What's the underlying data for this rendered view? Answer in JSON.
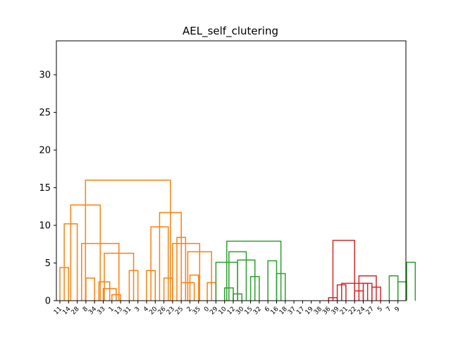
{
  "chart_data": {
    "type": "dendrogram",
    "title": "AEL_self_clutering",
    "xlabel": "",
    "ylabel": "",
    "ylim": [
      0,
      34.5
    ],
    "yticks": [
      0,
      5,
      10,
      15,
      20,
      25,
      30
    ],
    "grid": false,
    "leaves": [
      "11",
      "14",
      "28",
      "8",
      "34",
      "33",
      "1",
      "13",
      "31",
      "3",
      "4",
      "20",
      "26",
      "23",
      "25",
      "2",
      "35",
      "0",
      "29",
      "10",
      "12",
      "30",
      "15",
      "32",
      "6",
      "16",
      "18",
      "37",
      "17",
      "19",
      "38",
      "36",
      "39",
      "21",
      "22",
      "24",
      "27",
      "5",
      "7",
      "9"
    ],
    "colors": {
      "orange": "#ff7f0e",
      "green": "#2ca02c",
      "red": "#d62728",
      "blue": "#1f77b4"
    },
    "merges": [
      {
        "left": 0,
        "right": 1,
        "height": 4.4,
        "color": "orange"
      },
      {
        "left": 0.5,
        "right": 2,
        "height": 10.2,
        "color": "orange"
      },
      {
        "left": 3,
        "right": 4,
        "height": 3.0,
        "color": "orange"
      },
      {
        "left": 6,
        "right": 7,
        "height": 0.8,
        "color": "orange"
      },
      {
        "left": 5,
        "right": 6.5,
        "height": 1.6,
        "color": "orange"
      },
      {
        "left": 4.5,
        "right": 5.75,
        "height": 2.5,
        "color": "orange"
      },
      {
        "left": 8,
        "right": 9,
        "height": 4.0,
        "color": "orange"
      },
      {
        "left": 5.125,
        "right": 8.5,
        "height": 6.3,
        "color": "orange"
      },
      {
        "left": 2.5,
        "right": 6.8125,
        "height": 7.6,
        "color": "orange"
      },
      {
        "left": 1.25,
        "right": 4.65625,
        "height": 12.7,
        "color": "orange"
      },
      {
        "left": 10,
        "right": 11,
        "height": 4.0,
        "color": "orange"
      },
      {
        "left": 12,
        "right": 13,
        "height": 3.0,
        "color": "orange"
      },
      {
        "left": 10.5,
        "right": 12.5,
        "height": 9.8,
        "color": "orange"
      },
      {
        "left": 15,
        "right": 16,
        "height": 3.4,
        "color": "orange"
      },
      {
        "left": 14,
        "right": 15.5,
        "height": 2.4,
        "color": "orange"
      },
      {
        "left": 17,
        "right": 18,
        "height": 2.4,
        "color": "orange"
      },
      {
        "left": 14.75,
        "right": 17.5,
        "height": 6.5,
        "color": "orange"
      },
      {
        "left": 13,
        "right": 16.125,
        "height": 7.6,
        "color": "orange"
      },
      {
        "left": 13.5,
        "right": 14.5,
        "height": 8.4,
        "color": "orange"
      },
      {
        "left": 11.5,
        "right": 14.0,
        "height": 11.7,
        "color": "orange"
      },
      {
        "left": 2.953,
        "right": 12.75,
        "height": 16.0,
        "color": "orange"
      },
      {
        "left": 19,
        "right": 20,
        "height": 1.7,
        "color": "green"
      },
      {
        "left": 20,
        "right": 21,
        "height": 0.9,
        "color": "green"
      },
      {
        "left": 22,
        "right": 23,
        "height": 3.2,
        "color": "green"
      },
      {
        "left": 20.5,
        "right": 22.5,
        "height": 5.4,
        "color": "green"
      },
      {
        "left": 19.5,
        "right": 21.5,
        "height": 6.5,
        "color": "green"
      },
      {
        "left": 24,
        "right": 25,
        "height": 5.3,
        "color": "green"
      },
      {
        "left": 25,
        "right": 26,
        "height": 3.6,
        "color": "green"
      },
      {
        "left": 18,
        "right": 20.5,
        "height": 5.1,
        "color": "green"
      },
      {
        "left": 19.25,
        "right": 25.5,
        "height": 7.9,
        "color": "green"
      },
      {
        "left": 31,
        "right": 32,
        "height": 0.4,
        "color": "red"
      },
      {
        "left": 32,
        "right": 33,
        "height": 2.1,
        "color": "red"
      },
      {
        "left": 34,
        "right": 35,
        "height": 1.3,
        "color": "red"
      },
      {
        "left": 35,
        "right": 36,
        "height": 2.3,
        "color": "red"
      },
      {
        "left": 36,
        "right": 37,
        "height": 1.8,
        "color": "red"
      },
      {
        "left": 34.5,
        "right": 36.5,
        "height": 3.3,
        "color": "red"
      },
      {
        "left": 32.5,
        "right": 35.5,
        "height": 2.3,
        "color": "red"
      },
      {
        "left": 31.5,
        "right": 34.0,
        "height": 8.0,
        "color": "red"
      },
      {
        "left": 38,
        "right": 39,
        "height": 3.3,
        "color": "green"
      },
      {
        "left": 39,
        "right": 40,
        "height": 2.5,
        "color": "green"
      },
      {
        "left": 40,
        "right": 41,
        "height": 5.1,
        "color": "green"
      }
    ]
  }
}
